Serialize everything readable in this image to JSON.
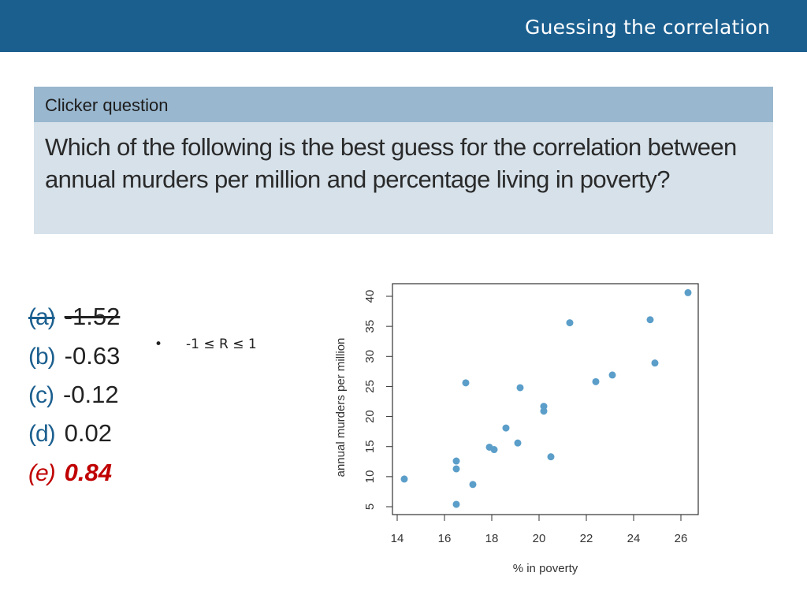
{
  "header": {
    "title": "Guessing the correlation"
  },
  "question": {
    "label": "Clicker question",
    "text": "Which of the following is the best guess for the correlation between annual murders per million and percentage living in poverty?"
  },
  "answers": [
    {
      "letter": "(a)",
      "value": "-1.52",
      "status": "struck"
    },
    {
      "letter": "(b)",
      "value": "-0.63",
      "status": "normal"
    },
    {
      "letter": "(c)",
      "value": "-0.12",
      "status": "normal"
    },
    {
      "letter": "(d)",
      "value": "0.02",
      "status": "normal"
    },
    {
      "letter": "(e)",
      "value": "0.84",
      "status": "correct"
    }
  ],
  "note": {
    "bullet": "•",
    "text": "-1 ≤ R ≤ 1"
  },
  "colors": {
    "header": "#1b5f8f",
    "label_bar": "#99b7ce",
    "question_bg": "#d6e1ea",
    "point": "#5b9ec9",
    "correct": "#c00000"
  },
  "chart_data": {
    "type": "scatter",
    "xlabel": "% in poverty",
    "ylabel": "annual murders per million",
    "xlim": [
      14,
      26
    ],
    "ylim": [
      5,
      40
    ],
    "xticks": [
      14,
      16,
      18,
      20,
      22,
      24,
      26
    ],
    "yticks": [
      5,
      10,
      15,
      20,
      25,
      30,
      35,
      40
    ],
    "points": [
      {
        "x": 14.3,
        "y": 9.6
      },
      {
        "x": 16.5,
        "y": 5.4
      },
      {
        "x": 16.5,
        "y": 11.3
      },
      {
        "x": 16.5,
        "y": 12.6
      },
      {
        "x": 16.9,
        "y": 25.6
      },
      {
        "x": 17.2,
        "y": 8.7
      },
      {
        "x": 17.9,
        "y": 14.9
      },
      {
        "x": 18.1,
        "y": 14.5
      },
      {
        "x": 18.6,
        "y": 18.1
      },
      {
        "x": 19.1,
        "y": 15.6
      },
      {
        "x": 19.2,
        "y": 24.8
      },
      {
        "x": 20.2,
        "y": 21.7
      },
      {
        "x": 20.2,
        "y": 20.9
      },
      {
        "x": 20.5,
        "y": 13.3
      },
      {
        "x": 21.3,
        "y": 35.6
      },
      {
        "x": 22.4,
        "y": 25.8
      },
      {
        "x": 23.1,
        "y": 26.9
      },
      {
        "x": 24.7,
        "y": 36.1
      },
      {
        "x": 24.9,
        "y": 28.9
      },
      {
        "x": 26.3,
        "y": 40.6
      }
    ]
  }
}
